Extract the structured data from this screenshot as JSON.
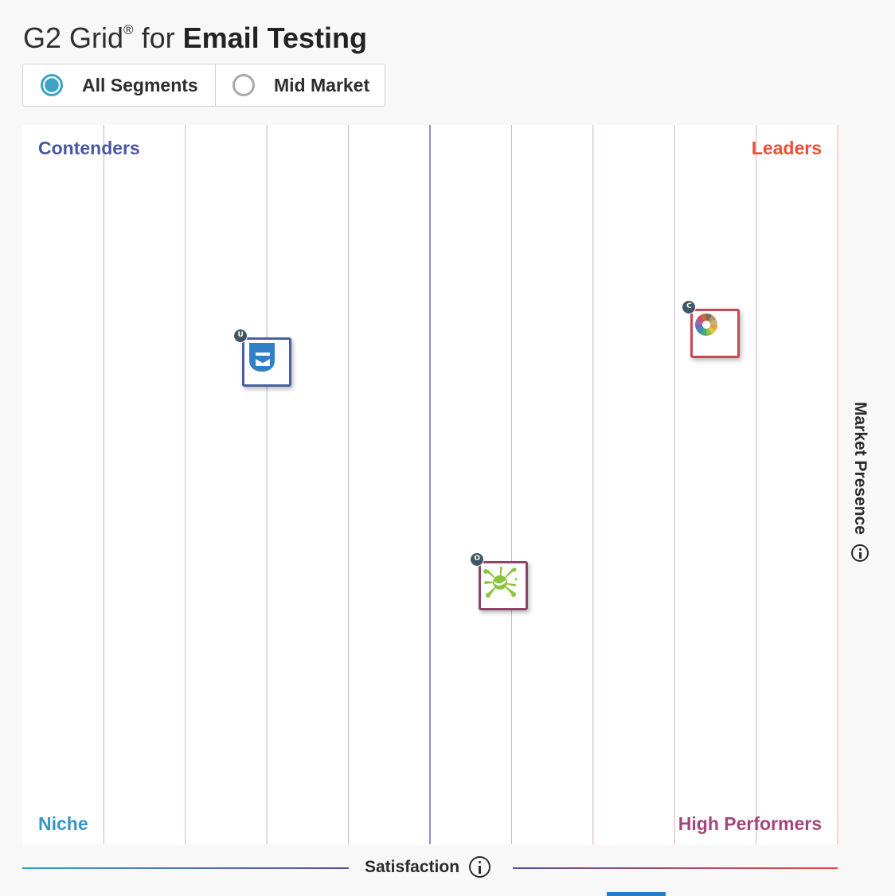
{
  "header": {
    "title_prefix": "G2 Grid",
    "title_reg": "®",
    "title_for": "for",
    "title_category": "Email Testing"
  },
  "segments": [
    {
      "label": "All Segments",
      "selected": true
    },
    {
      "label": "Mid Market",
      "selected": false
    }
  ],
  "colors": {
    "contenders": "#4a57a0",
    "leaders": "#ec4d35",
    "niche": "#3a93c8",
    "high_performers": "#a2477c",
    "selected_radio": "#3ea3c4"
  },
  "chart_data": {
    "type": "scatter",
    "quadrants": {
      "top_left": "Contenders",
      "top_right": "Leaders",
      "bottom_left": "Niche",
      "bottom_right": "High Performers"
    },
    "xlabel": "Satisfaction",
    "ylabel": "Market Presence",
    "xlim": [
      0,
      10
    ],
    "ylim": [
      0,
      10
    ],
    "grid": true,
    "points": [
      {
        "icon": "envelope-logo-icon",
        "badge": "U",
        "x": 3.0,
        "y": 6.7,
        "border": "#4a5fa0"
      },
      {
        "icon": "color-wheel-logo-icon",
        "badge": "C",
        "x": 8.5,
        "y": 7.1,
        "border": "#c24a50"
      },
      {
        "icon": "green-splat-logo-icon",
        "badge": "O",
        "x": 5.9,
        "y": 3.6,
        "border": "#8c4568"
      }
    ]
  }
}
